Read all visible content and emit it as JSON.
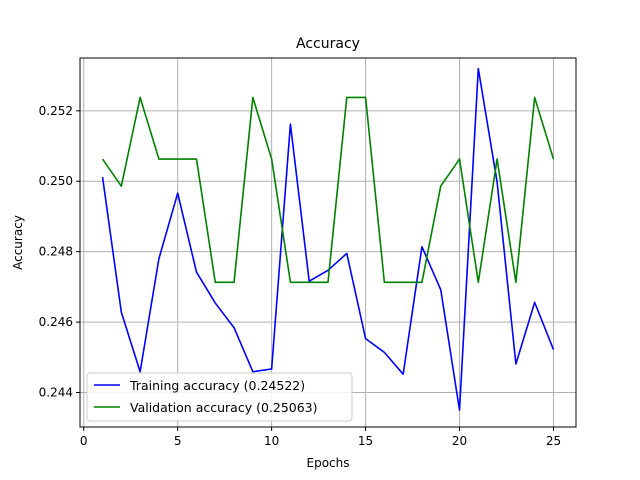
{
  "chart_data": {
    "type": "line",
    "title": "Accuracy",
    "xlabel": "Epochs",
    "ylabel": "Accuracy",
    "xlim": [
      -0.2,
      26.2
    ],
    "ylim": [
      0.24302,
      0.2535
    ],
    "xticks": [
      0,
      5,
      10,
      15,
      20,
      25
    ],
    "yticks": [
      0.244,
      0.246,
      0.248,
      0.25,
      0.252
    ],
    "ytick_labels": [
      "0.244",
      "0.246",
      "0.248",
      "0.250",
      "0.252"
    ],
    "grid": true,
    "legend_position": "lower-left",
    "x": [
      1,
      2,
      3,
      4,
      5,
      6,
      7,
      8,
      9,
      10,
      11,
      12,
      13,
      14,
      15,
      16,
      17,
      18,
      19,
      20,
      21,
      22,
      23,
      24,
      25
    ],
    "series": [
      {
        "name": "Training accuracy (0.24522)",
        "color": "#0000ff",
        "values": [
          0.25012,
          0.24628,
          0.24459,
          0.2478,
          0.24966,
          0.24742,
          0.24654,
          0.24584,
          0.24459,
          0.24467,
          0.25162,
          0.24716,
          0.24747,
          0.24795,
          0.24553,
          0.24514,
          0.24452,
          0.24814,
          0.24692,
          0.2435,
          0.2532,
          0.24998,
          0.24481,
          0.24656,
          0.24522
        ]
      },
      {
        "name": "Validation accuracy (0.25063)",
        "color": "#008000",
        "values": [
          0.25063,
          0.24986,
          0.25238,
          0.25063,
          0.25063,
          0.25063,
          0.24713,
          0.24713,
          0.25238,
          0.25063,
          0.24713,
          0.24713,
          0.24713,
          0.25238,
          0.25238,
          0.24713,
          0.24713,
          0.24713,
          0.24986,
          0.25063,
          0.24713,
          0.25063,
          0.24713,
          0.25238,
          0.25063
        ]
      }
    ]
  }
}
